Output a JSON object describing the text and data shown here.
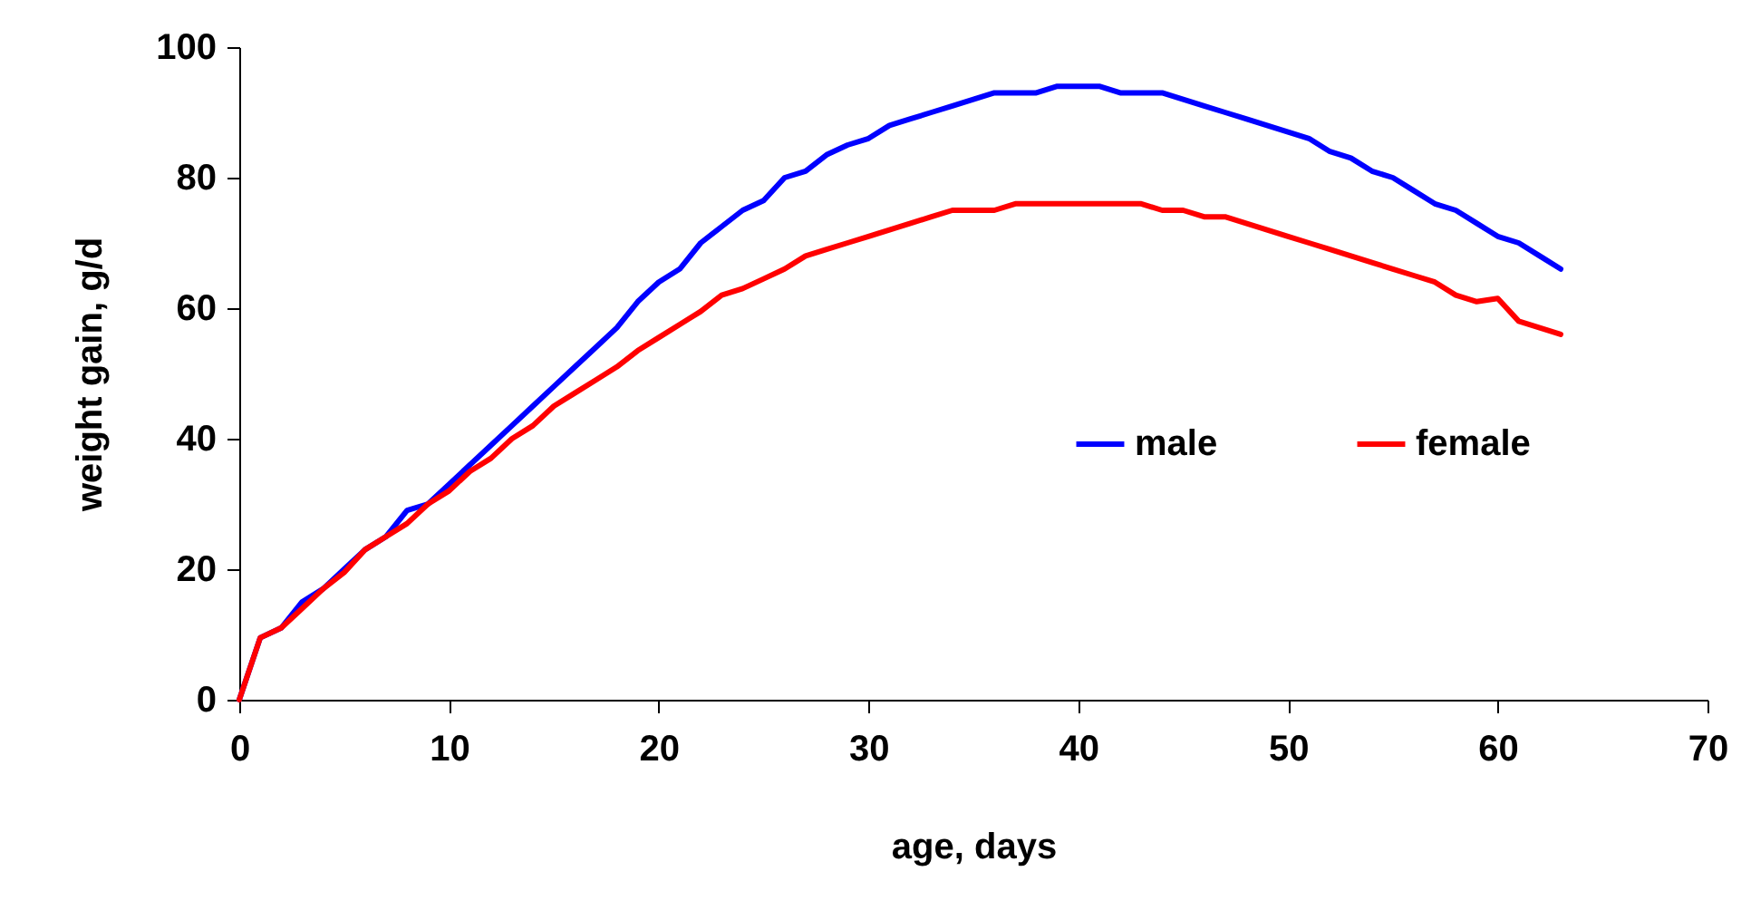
{
  "chart_data": {
    "type": "line",
    "xlabel": "age, days",
    "ylabel": "weight gain, g/d",
    "x": [
      0,
      1,
      2,
      3,
      4,
      5,
      6,
      7,
      8,
      9,
      10,
      11,
      12,
      13,
      14,
      15,
      16,
      17,
      18,
      19,
      20,
      21,
      22,
      23,
      24,
      25,
      26,
      27,
      28,
      29,
      30,
      31,
      32,
      33,
      34,
      35,
      36,
      37,
      38,
      39,
      40,
      41,
      42,
      43,
      44,
      45,
      46,
      47,
      48,
      49,
      50,
      51,
      52,
      53,
      54,
      55,
      56,
      57,
      58,
      59,
      60,
      61,
      62,
      63
    ],
    "series": [
      {
        "name": "male",
        "color": "#0000ff",
        "values": [
          0,
          9.5,
          11,
          15,
          17,
          20,
          23,
          25,
          29,
          30,
          33,
          36,
          39,
          42,
          45,
          48,
          51,
          54,
          57,
          61,
          64,
          66,
          70,
          72.5,
          75,
          76.5,
          80,
          81,
          83.5,
          85,
          86,
          88,
          89,
          90,
          91,
          92,
          93,
          93,
          93,
          94,
          94,
          94,
          93,
          93,
          93,
          92,
          91,
          90,
          89,
          88,
          87,
          86,
          84,
          83,
          81,
          80,
          78,
          76,
          75,
          73,
          71,
          70,
          68,
          66
        ]
      },
      {
        "name": "female",
        "color": "#ff0000",
        "values": [
          0,
          9.5,
          11,
          14,
          17,
          19.5,
          23,
          25,
          27,
          30,
          32,
          35,
          37,
          40,
          42,
          45,
          47,
          49,
          51,
          53.5,
          55.5,
          57.5,
          59.5,
          62,
          63,
          64.5,
          66,
          68,
          69,
          70,
          71,
          72,
          73,
          74,
          75,
          75,
          75,
          76,
          76,
          76,
          76,
          76,
          76,
          76,
          75,
          75,
          74,
          74,
          73,
          72,
          71,
          70,
          69,
          68,
          67,
          66,
          65,
          64,
          62,
          61,
          61.5,
          58,
          57,
          56
        ]
      }
    ],
    "xlim": [
      0,
      70
    ],
    "xticks": [
      0,
      10,
      20,
      30,
      40,
      50,
      60,
      70
    ],
    "ylim": [
      0,
      100
    ],
    "yticks": [
      0,
      20,
      40,
      60,
      80,
      100
    ],
    "grid": false,
    "legend": "right",
    "marker": "none",
    "line_style": "solid"
  }
}
